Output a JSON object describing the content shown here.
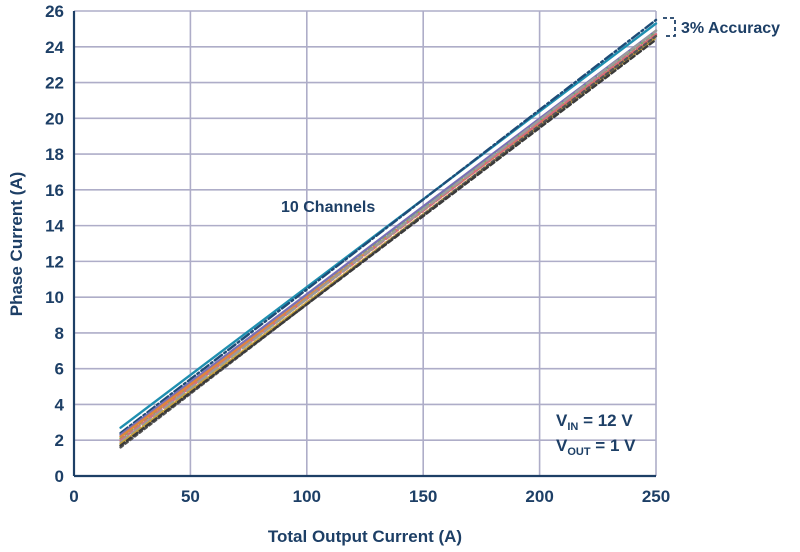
{
  "chart_data": {
    "type": "line",
    "xlabel": "Total Output Current (A)",
    "ylabel": "Phase Current (A)",
    "xlim": [
      0,
      250
    ],
    "ylim": [
      0,
      26
    ],
    "xticks": [
      0,
      50,
      100,
      150,
      200,
      250
    ],
    "yticks": [
      0,
      2,
      4,
      6,
      8,
      10,
      12,
      14,
      16,
      18,
      20,
      22,
      24,
      26
    ],
    "grid": true,
    "series": [
      {
        "color": "#1f8fb0",
        "dash": "",
        "x": [
          20,
          250
        ],
        "y": [
          2.7,
          25.3
        ]
      },
      {
        "color": "#1e4c77",
        "dash": "9,3,2,3",
        "x": [
          20,
          250
        ],
        "y": [
          2.4,
          25.5
        ]
      },
      {
        "color": "#7a6fb6",
        "dash": "",
        "x": [
          20,
          250
        ],
        "y": [
          2.3,
          24.9
        ]
      },
      {
        "color": "#6bb36b",
        "dash": "3,3",
        "x": [
          20,
          250
        ],
        "y": [
          2.1,
          24.8
        ]
      },
      {
        "color": "#e0853a",
        "dash": "",
        "x": [
          20,
          250
        ],
        "y": [
          2.2,
          24.6
        ]
      },
      {
        "color": "#d96c7a",
        "dash": "6,3",
        "x": [
          20,
          250
        ],
        "y": [
          2.0,
          24.7
        ]
      },
      {
        "color": "#9b9b9b",
        "dash": "10,4",
        "x": [
          20,
          250
        ],
        "y": [
          1.9,
          24.9
        ]
      },
      {
        "color": "#c8a13a",
        "dash": "2,2",
        "x": [
          20,
          250
        ],
        "y": [
          1.8,
          24.5
        ]
      },
      {
        "color": "#555555",
        "dash": "3,3",
        "x": [
          20,
          250
        ],
        "y": [
          1.6,
          24.6
        ]
      },
      {
        "color": "#3a3a3a",
        "dash": "5,3",
        "x": [
          20,
          250
        ],
        "y": [
          1.7,
          24.4
        ]
      }
    ],
    "annotations": {
      "channels": "10 Channels",
      "accuracy": "3% Accuracy",
      "vin_main": "V",
      "vin_sub": "IN",
      "vin_value": " = 12 V",
      "vout_main": "V",
      "vout_sub": "OUT",
      "vout_value": " = 1 V"
    },
    "colors": {
      "text": "#1d3f66",
      "grid": "#aeadc8",
      "axis": "#1d3f66"
    }
  }
}
